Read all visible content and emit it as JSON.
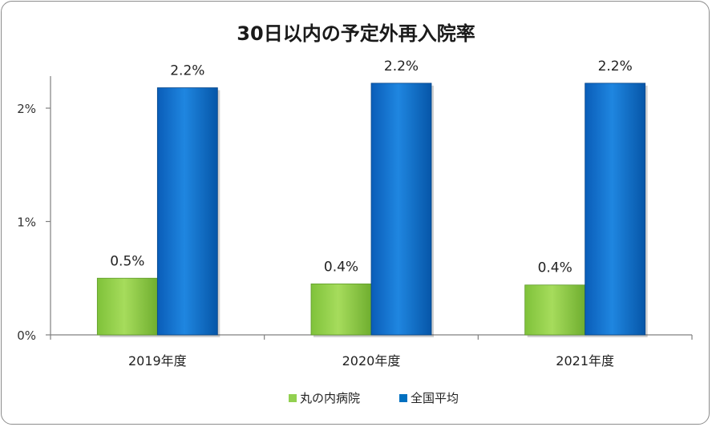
{
  "chart_data": {
    "type": "bar",
    "title": "30日以内の予定外再入院率",
    "categories": [
      "2019年度",
      "2020年度",
      "2021年度"
    ],
    "series": [
      {
        "name": "丸の内病院",
        "values": [
          0.5,
          0.45,
          0.44
        ],
        "labels": [
          "0.5%",
          "0.4%",
          "0.4%"
        ],
        "color": "#92d050"
      },
      {
        "name": "全国平均",
        "values": [
          2.18,
          2.22,
          2.22
        ],
        "labels": [
          "2.2%",
          "2.2%",
          "2.2%"
        ],
        "color": "#0070c0"
      }
    ],
    "yticks": [
      "0%",
      "1%",
      "2%"
    ],
    "ylim": [
      0,
      2.3
    ],
    "grid": false,
    "legend_position": "bottom"
  }
}
